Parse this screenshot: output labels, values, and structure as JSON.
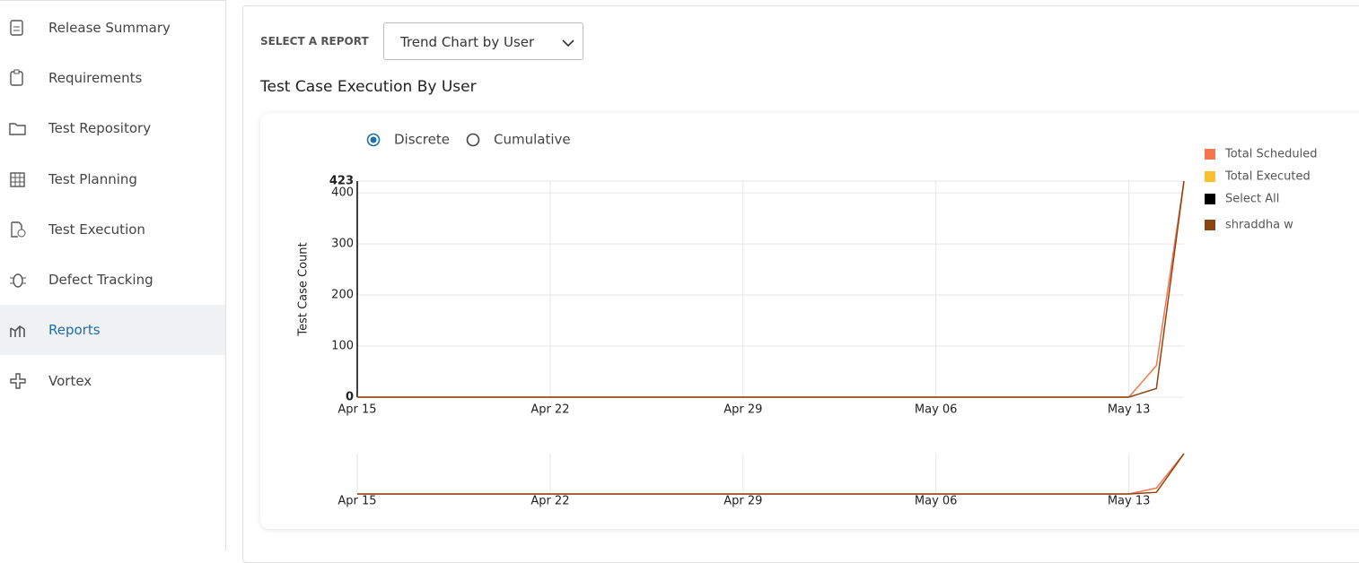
{
  "sidebar": {
    "items": [
      {
        "label": "Release Summary"
      },
      {
        "label": "Requirements"
      },
      {
        "label": "Test Repository"
      },
      {
        "label": "Test Planning"
      },
      {
        "label": "Test Execution"
      },
      {
        "label": "Defect Tracking"
      },
      {
        "label": "Reports"
      },
      {
        "label": "Vortex"
      }
    ]
  },
  "report_selector": {
    "label": "SELECT A REPORT",
    "selected": "Trend Chart by User"
  },
  "section_title": "Test Case Execution By User",
  "view_options": [
    {
      "label": "Discrete",
      "checked": true
    },
    {
      "label": "Cumulative",
      "checked": false
    }
  ],
  "chart_data": {
    "type": "line",
    "y_label": "Test Case Count",
    "x": [
      "Apr 15",
      "May 13",
      "May 14",
      "May 15"
    ],
    "series": [
      {
        "name": "Total Scheduled",
        "color": "#f4764f",
        "values": [
          0,
          0,
          62,
          423
        ]
      },
      {
        "name": "Total Executed",
        "color": "#fbc02d",
        "values": [
          null,
          null,
          null,
          null
        ]
      },
      {
        "name": "Select All",
        "color": "#000000",
        "values": [
          null,
          null,
          null,
          null
        ]
      },
      {
        "name": "shraddha w",
        "color": "#8b4513",
        "values": [
          0,
          0,
          17,
          423
        ]
      }
    ],
    "xlim": [
      "Apr 15",
      "May 15"
    ],
    "xticks": [
      "Apr 15",
      "Apr 22",
      "Apr 29",
      "May 06",
      "May 13"
    ],
    "ylim": [
      0,
      423
    ],
    "yticks": [
      0,
      100,
      200,
      300,
      400,
      423
    ],
    "grid": true
  }
}
